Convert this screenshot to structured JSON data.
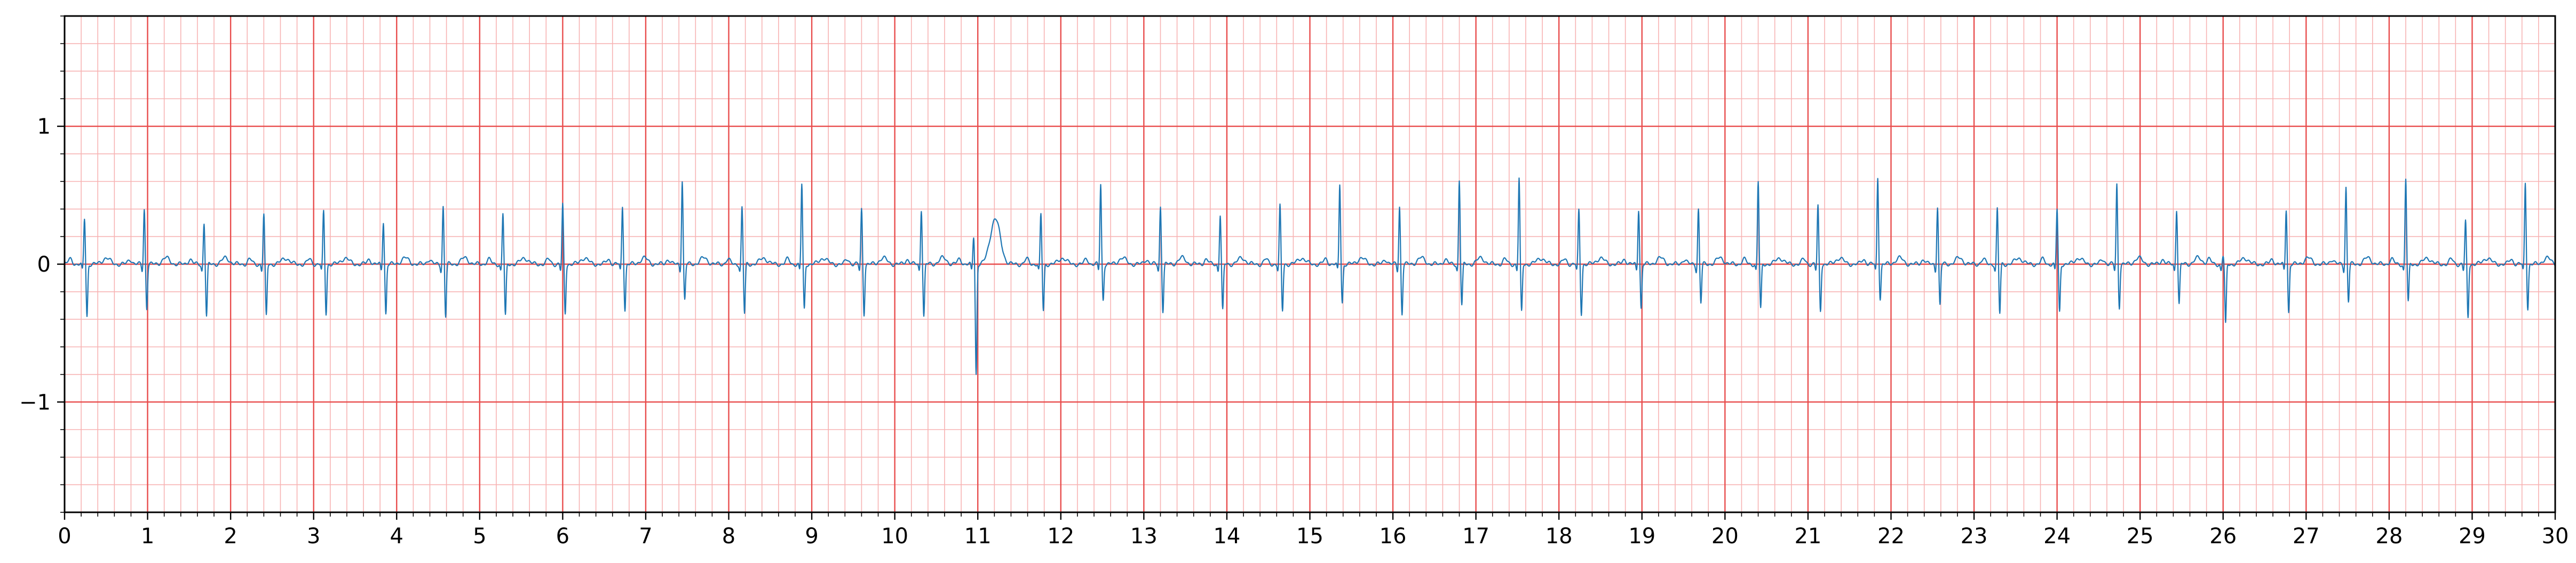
{
  "chart_data": {
    "type": "line",
    "title": "",
    "xlabel": "",
    "ylabel": "",
    "xlim": [
      0,
      30
    ],
    "ylim": [
      -1.8,
      1.8
    ],
    "grid": true,
    "major_grid": {
      "x_step": 1,
      "y_step": 1,
      "color": "#e84c4c"
    },
    "minor_grid": {
      "x_step": 0.2,
      "y_step": 0.2,
      "color": "#f7b3b3"
    },
    "x_ticks": [
      0,
      1,
      2,
      3,
      4,
      5,
      6,
      7,
      8,
      9,
      10,
      11,
      12,
      13,
      14,
      15,
      16,
      17,
      18,
      19,
      20,
      21,
      22,
      23,
      24,
      25,
      26,
      27,
      28,
      29,
      30
    ],
    "x_tick_labels": [
      "0",
      "1",
      "2",
      "3",
      "4",
      "5",
      "6",
      "7",
      "8",
      "9",
      "10",
      "11",
      "12",
      "13",
      "14",
      "15",
      "16",
      "17",
      "18",
      "19",
      "20",
      "21",
      "22",
      "23",
      "24",
      "25",
      "26",
      "27",
      "28",
      "29",
      "30"
    ],
    "y_ticks": [
      1,
      0,
      -1
    ],
    "y_tick_labels": [
      "1",
      "0",
      "−1"
    ],
    "series": [
      {
        "color": "#1f77b4",
        "beats": [
          {
            "t": 0.24,
            "r": 0.33,
            "s": -0.38
          },
          {
            "t": 0.96,
            "r": 0.4,
            "s": -0.32
          },
          {
            "t": 1.68,
            "r": 0.3,
            "s": -0.38
          },
          {
            "t": 2.4,
            "r": 0.36,
            "s": -0.38
          },
          {
            "t": 3.12,
            "r": 0.38,
            "s": -0.36
          },
          {
            "t": 3.84,
            "r": 0.31,
            "s": -0.36
          },
          {
            "t": 4.56,
            "r": 0.42,
            "s": -0.38
          },
          {
            "t": 5.28,
            "r": 0.37,
            "s": -0.38
          },
          {
            "t": 6.0,
            "r": 0.43,
            "s": -0.36
          },
          {
            "t": 6.72,
            "r": 0.42,
            "s": -0.33
          },
          {
            "t": 7.44,
            "r": 0.61,
            "s": -0.26
          },
          {
            "t": 8.16,
            "r": 0.41,
            "s": -0.36
          },
          {
            "t": 8.88,
            "r": 0.58,
            "s": -0.33
          },
          {
            "t": 9.6,
            "r": 0.4,
            "s": -0.36
          },
          {
            "t": 10.32,
            "r": 0.4,
            "s": -0.38
          },
          {
            "t": 10.95,
            "r": 0.2,
            "s": -0.8,
            "t_wave": 0.33
          },
          {
            "t": 11.76,
            "r": 0.36,
            "s": -0.34
          },
          {
            "t": 12.48,
            "r": 0.58,
            "s": -0.26
          },
          {
            "t": 13.2,
            "r": 0.42,
            "s": -0.34
          },
          {
            "t": 13.92,
            "r": 0.36,
            "s": -0.34
          },
          {
            "t": 14.64,
            "r": 0.42,
            "s": -0.34
          },
          {
            "t": 15.36,
            "r": 0.58,
            "s": -0.28
          },
          {
            "t": 16.08,
            "r": 0.42,
            "s": -0.36
          },
          {
            "t": 16.8,
            "r": 0.61,
            "s": -0.3
          },
          {
            "t": 17.52,
            "r": 0.62,
            "s": -0.35
          },
          {
            "t": 18.24,
            "r": 0.39,
            "s": -0.36
          },
          {
            "t": 18.96,
            "r": 0.4,
            "s": -0.32
          },
          {
            "t": 19.68,
            "r": 0.4,
            "s": -0.28
          },
          {
            "t": 20.4,
            "r": 0.6,
            "s": -0.33
          },
          {
            "t": 21.12,
            "r": 0.42,
            "s": -0.34
          },
          {
            "t": 21.84,
            "r": 0.63,
            "s": -0.25
          },
          {
            "t": 22.56,
            "r": 0.42,
            "s": -0.3
          },
          {
            "t": 23.28,
            "r": 0.4,
            "s": -0.36
          },
          {
            "t": 24.0,
            "r": 0.4,
            "s": -0.35
          },
          {
            "t": 24.72,
            "r": 0.58,
            "s": -0.31
          },
          {
            "t": 25.44,
            "r": 0.4,
            "s": -0.29
          },
          {
            "t": 26.0,
            "r": 0.06,
            "s": -0.44
          },
          {
            "t": 26.76,
            "r": 0.4,
            "s": -0.35
          },
          {
            "t": 27.48,
            "r": 0.56,
            "s": -0.27
          },
          {
            "t": 28.2,
            "r": 0.62,
            "s": -0.28
          },
          {
            "t": 28.92,
            "r": 0.31,
            "s": -0.39
          },
          {
            "t": 29.64,
            "r": 0.59,
            "s": -0.32
          }
        ]
      }
    ]
  }
}
